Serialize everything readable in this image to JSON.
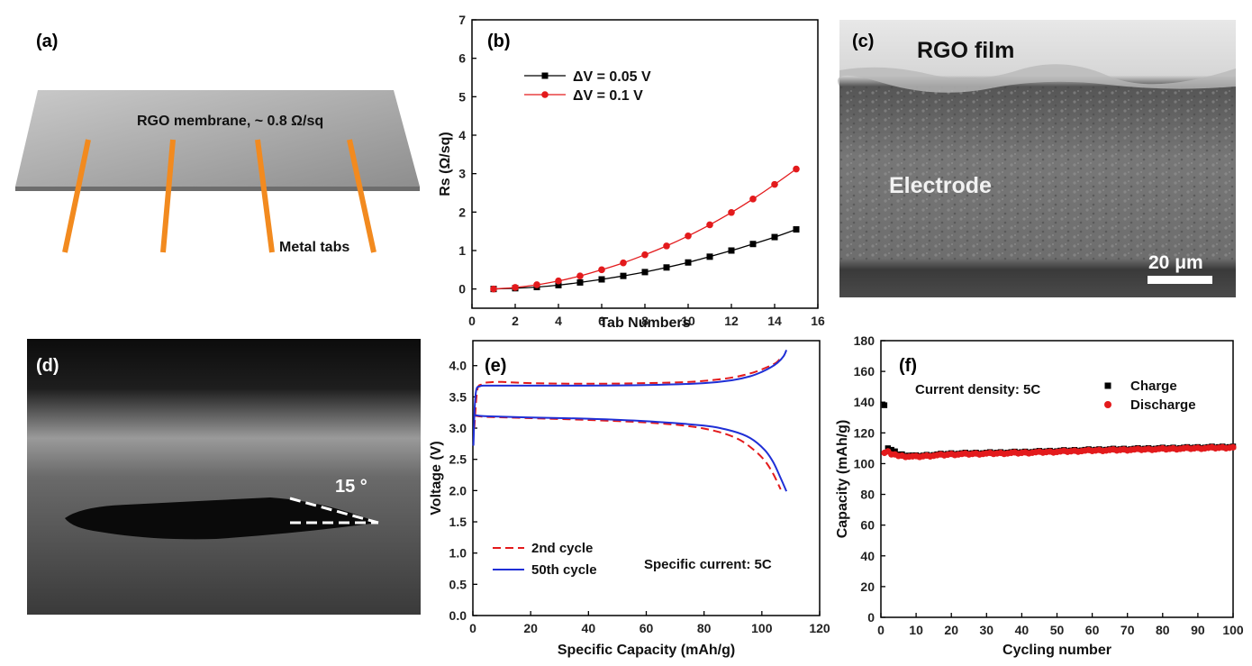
{
  "panels": {
    "a": {
      "label": "(a)",
      "membrane_text": "RGO membrane, ~ 0.8 Ω/sq",
      "tabs_text": "Metal tabs",
      "tab_color": "#F28A1F"
    },
    "c": {
      "label": "(c)",
      "film_text": "RGO film",
      "electrode_text": "Electrode",
      "scale_text": "20 μm"
    },
    "d": {
      "label": "(d)",
      "angle_text": "15 °"
    }
  },
  "chart_data": [
    {
      "id": "b",
      "label": "(b)",
      "type": "line",
      "xlabel": "Tab Numbers",
      "ylabel": "Rs (Ω/sq)",
      "xlim": [
        0,
        16
      ],
      "ylim": [
        -0.5,
        7
      ],
      "xticks": [
        0,
        2,
        4,
        6,
        8,
        10,
        12,
        14,
        16
      ],
      "yticks": [
        0,
        1,
        2,
        3,
        4,
        5,
        6,
        7
      ],
      "legend_position": "top-left",
      "series": [
        {
          "name": "ΔV = 0.05 V",
          "color": "#000000",
          "marker": "square",
          "x": [
            1,
            2,
            3,
            4,
            5,
            6,
            7,
            8,
            9,
            10,
            11,
            12,
            13,
            14,
            15
          ],
          "y": [
            0.0,
            0.02,
            0.05,
            0.1,
            0.17,
            0.25,
            0.34,
            0.44,
            0.56,
            0.69,
            0.84,
            1.0,
            1.17,
            1.35,
            1.55
          ]
        },
        {
          "name": "ΔV = 0.1 V",
          "color": "#E31A1C",
          "marker": "circle",
          "x": [
            1,
            2,
            3,
            4,
            5,
            6,
            7,
            8,
            9,
            10,
            11,
            12,
            13,
            14,
            15
          ],
          "y": [
            0.0,
            0.04,
            0.11,
            0.21,
            0.34,
            0.5,
            0.68,
            0.89,
            1.12,
            1.38,
            1.67,
            1.99,
            2.34,
            2.72,
            3.12
          ]
        }
      ]
    },
    {
      "id": "e",
      "label": "(e)",
      "type": "line",
      "xlabel": "Specific Capacity (mAh/g)",
      "ylabel": "Voltage (V)",
      "xlim": [
        0,
        120
      ],
      "ylim": [
        0,
        4.4
      ],
      "xticks": [
        0,
        20,
        40,
        60,
        80,
        100,
        120
      ],
      "yticks": [
        0.0,
        0.5,
        1.0,
        1.5,
        2.0,
        2.5,
        3.0,
        3.5,
        4.0
      ],
      "annotation": "Specific current: 5C",
      "legend_position": "bottom-left",
      "series": [
        {
          "name": "2nd cycle",
          "color": "#E31A1C",
          "dash": true,
          "segments": [
            {
              "x": [
                0.5,
                1.5,
                3,
                5,
                10,
                20,
                40,
                60,
                75,
                85,
                92,
                97,
                100,
                103,
                105,
                106.5
              ],
              "y": [
                3.0,
                3.6,
                3.7,
                3.73,
                3.74,
                3.72,
                3.71,
                3.72,
                3.74,
                3.78,
                3.83,
                3.89,
                3.94,
                4.0,
                4.05,
                4.12
              ]
            },
            {
              "x": [
                0.5,
                2,
                5,
                20,
                40,
                60,
                75,
                85,
                92,
                97,
                101,
                104,
                106.5
              ],
              "y": [
                3.2,
                3.19,
                3.18,
                3.16,
                3.13,
                3.09,
                3.03,
                2.94,
                2.82,
                2.66,
                2.48,
                2.26,
                2.02
              ]
            }
          ]
        },
        {
          "name": "50th cycle",
          "color": "#1F2FD6",
          "dash": false,
          "segments": [
            {
              "x": [
                0.2,
                0.6,
                1.2,
                2.5,
                4,
                10,
                30,
                60,
                80,
                90,
                96,
                100,
                103,
                105.5,
                107.5,
                108.5
              ],
              "y": [
                2.72,
                3.3,
                3.62,
                3.67,
                3.68,
                3.68,
                3.68,
                3.69,
                3.72,
                3.77,
                3.83,
                3.9,
                3.97,
                4.05,
                4.15,
                4.25
              ]
            },
            {
              "x": [
                0.5,
                2,
                5,
                20,
                40,
                60,
                80,
                90,
                96,
                101,
                104,
                106.5,
                108.5
              ],
              "y": [
                3.21,
                3.2,
                3.19,
                3.17,
                3.15,
                3.11,
                3.04,
                2.95,
                2.84,
                2.65,
                2.45,
                2.2,
                1.99
              ]
            }
          ]
        }
      ]
    },
    {
      "id": "f",
      "label": "(f)",
      "type": "scatter",
      "xlabel": "Cycling number",
      "ylabel": "Capacity (mAh/g)",
      "xlim": [
        0,
        100
      ],
      "ylim": [
        0,
        180
      ],
      "xticks": [
        0,
        10,
        20,
        30,
        40,
        50,
        60,
        70,
        80,
        90,
        100
      ],
      "yticks": [
        0,
        20,
        40,
        60,
        80,
        100,
        120,
        140,
        160,
        180
      ],
      "annotation": "Current density: 5C",
      "legend_position": "top-right",
      "series": [
        {
          "name": "Charge",
          "color": "#000000",
          "marker": "square",
          "first_points": [
            [
              1,
              138
            ],
            [
              2,
              110
            ],
            [
              3,
              109
            ],
            [
              4,
              108
            ]
          ],
          "trend": {
            "x": [
              5,
              10,
              20,
              40,
              60,
              80,
              100
            ],
            "y": [
              106,
              105,
              106.5,
              107.5,
              109,
              110,
              111
            ]
          }
        },
        {
          "name": "Discharge",
          "color": "#E31A1C",
          "marker": "circle",
          "first_points": [
            [
              1,
              107
            ],
            [
              2,
              108
            ],
            [
              3,
              106
            ],
            [
              4,
              106
            ]
          ],
          "trend": {
            "x": [
              5,
              10,
              20,
              40,
              60,
              80,
              100
            ],
            "y": [
              105,
              104.5,
              106,
              107,
              108.5,
              109.5,
              110.5
            ]
          }
        }
      ]
    }
  ]
}
